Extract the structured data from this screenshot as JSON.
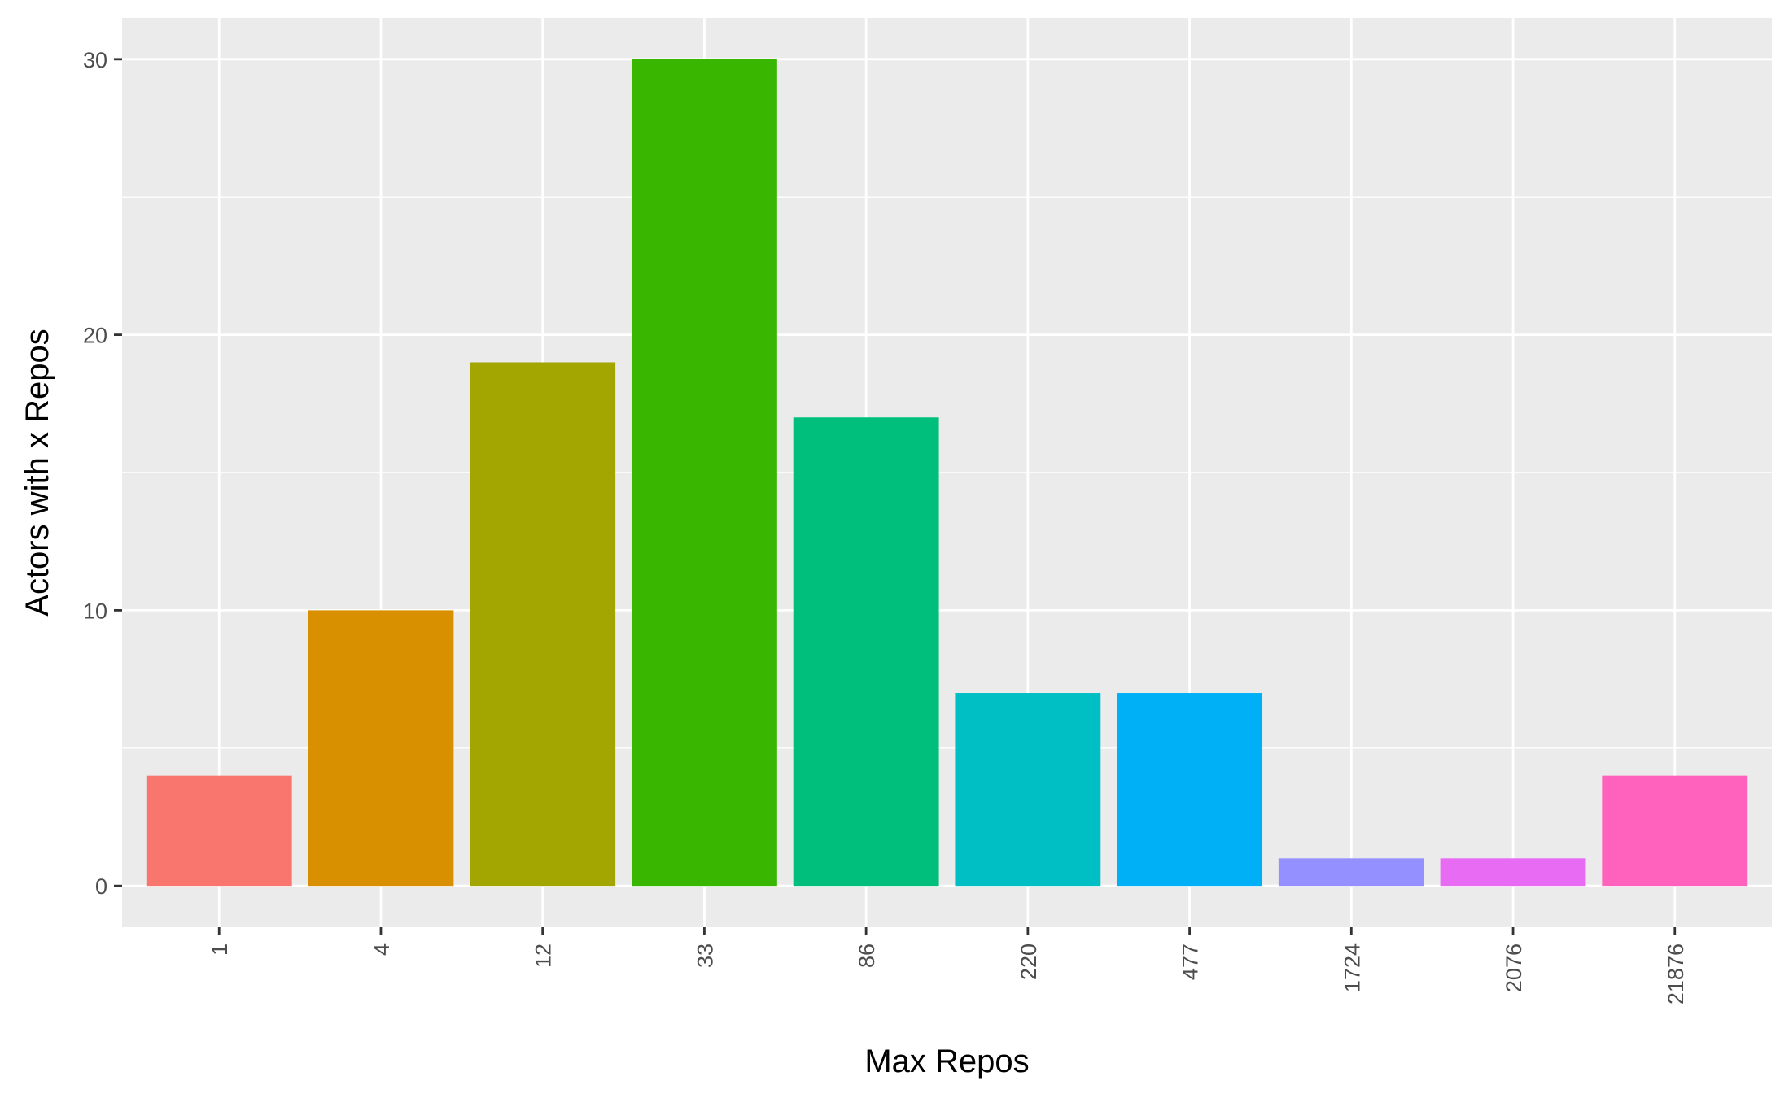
{
  "chart_data": {
    "type": "bar",
    "title": "",
    "xlabel": "Max Repos",
    "ylabel": "Actors with x Repos",
    "categories": [
      "1",
      "4",
      "12",
      "33",
      "86",
      "220",
      "477",
      "1724",
      "2076",
      "21876"
    ],
    "values": [
      4,
      10,
      19,
      30,
      17,
      7,
      7,
      1,
      1,
      4
    ],
    "colors": [
      "#F8766D",
      "#D89000",
      "#A3A500",
      "#39B600",
      "#00BF7D",
      "#00BFC4",
      "#00B0F6",
      "#9590FF",
      "#E76BF3",
      "#FF62BC"
    ],
    "ylim": [
      -1.5,
      31.5
    ],
    "yticks": [
      0,
      10,
      20,
      30
    ],
    "grid": true,
    "legend": "none",
    "panel_background": "#EBEBEB",
    "grid_color": "#FFFFFF"
  }
}
